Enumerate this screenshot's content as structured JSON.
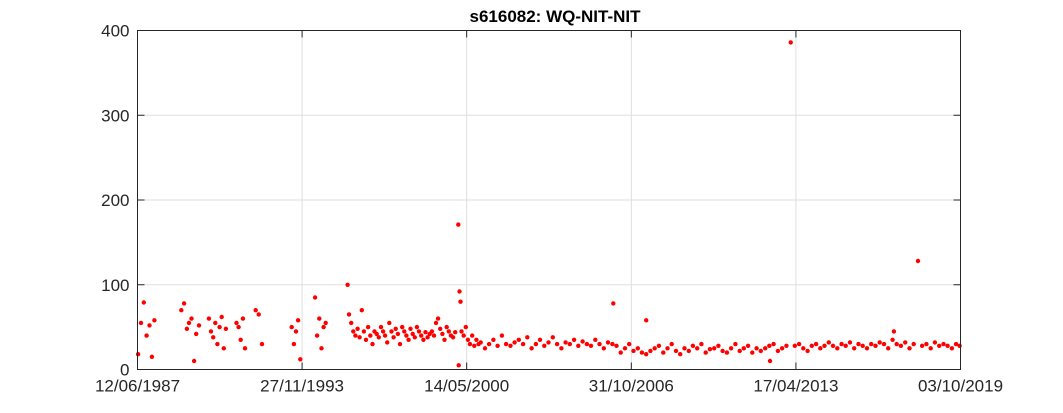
{
  "chart_data": {
    "type": "scatter",
    "title": "s616082: WQ-NIT-NIT",
    "xlabel": "",
    "ylabel": "",
    "x_ticks": [
      "12/06/1987",
      "27/11/1993",
      "14/05/2000",
      "31/10/2006",
      "17/04/2013",
      "03/10/2019"
    ],
    "xlim": [
      "1987-06-12",
      "2019-10-03"
    ],
    "ylim": [
      0,
      400
    ],
    "y_ticks": [
      0,
      100,
      200,
      300,
      400
    ],
    "grid": true,
    "marker_color": "#ff0000",
    "series": [
      {
        "x": [
          "1987-06-20",
          "1987-08-01",
          "1987-09-10",
          "1987-10-20",
          "1987-12-01",
          "1988-01-05",
          "1988-02-10",
          "1989-03-01",
          "1989-04-10",
          "1989-05-20",
          "1989-06-20",
          "1989-07-25",
          "1989-09-01",
          "1989-10-01",
          "1989-11-10",
          "1990-04-01",
          "1990-05-01",
          "1990-06-01",
          "1990-07-01",
          "1990-08-01",
          "1990-09-01",
          "1990-10-01",
          "1990-11-01",
          "1990-12-01",
          "1991-05-01",
          "1991-06-01",
          "1991-07-01",
          "1991-08-01",
          "1991-09-01",
          "1992-02-01",
          "1992-03-15",
          "1992-05-01",
          "1993-07-01",
          "1993-08-01",
          "1993-09-01",
          "1993-10-01",
          "1993-11-01",
          "1994-06-01",
          "1994-07-01",
          "1994-08-01",
          "1994-09-01",
          "1994-10-01",
          "1994-11-01",
          "1995-09-10",
          "1995-10-01",
          "1995-11-01",
          "1995-12-01",
          "1996-01-01",
          "1996-02-01",
          "1996-03-01",
          "1996-04-01",
          "1996-05-01",
          "1996-06-01",
          "1996-07-01",
          "1996-08-01",
          "1996-09-01",
          "1996-10-01",
          "1996-11-01",
          "1996-12-01",
          "1997-01-01",
          "1997-02-01",
          "1997-03-01",
          "1997-04-01",
          "1997-05-01",
          "1997-06-01",
          "1997-07-01",
          "1997-08-01",
          "1997-09-01",
          "1997-10-01",
          "1997-11-01",
          "1997-12-01",
          "1998-01-01",
          "1998-02-01",
          "1998-03-01",
          "1998-04-01",
          "1998-05-01",
          "1998-06-01",
          "1998-07-01",
          "1998-08-01",
          "1998-09-01",
          "1998-10-01",
          "1998-11-01",
          "1998-12-01",
          "1999-01-01",
          "1999-02-01",
          "1999-03-01",
          "1999-04-01",
          "1999-05-01",
          "1999-06-01",
          "1999-07-01",
          "1999-08-01",
          "1999-09-01",
          "1999-10-01",
          "1999-11-01",
          "1999-12-01",
          "2000-01-15",
          "2000-02-01",
          "2000-02-15",
          "2000-03-01",
          "2000-04-01",
          "2000-05-01",
          "2000-06-01",
          "2000-07-01",
          "2000-08-01",
          "2000-09-01",
          "2000-10-01",
          "2000-11-01",
          "2000-12-01",
          "2001-02-01",
          "2001-04-01",
          "2001-06-01",
          "2001-08-01",
          "2001-10-01",
          "2001-12-01",
          "2002-02-01",
          "2002-04-01",
          "2002-06-01",
          "2002-08-01",
          "2002-10-01",
          "2002-12-01",
          "2003-02-01",
          "2003-04-01",
          "2003-06-01",
          "2003-08-01",
          "2003-10-01",
          "2003-12-01",
          "2004-02-01",
          "2004-04-01",
          "2004-06-01",
          "2004-08-01",
          "2004-10-01",
          "2004-12-01",
          "2005-02-01",
          "2005-04-01",
          "2005-06-01",
          "2005-08-01",
          "2005-10-01",
          "2005-12-01",
          "2006-02-01",
          "2006-04-01",
          "2006-06-01",
          "2006-08-01",
          "2006-10-01",
          "2006-12-01",
          "2007-02-01",
          "2007-04-01",
          "2007-06-01",
          "2007-08-01",
          "2007-10-01",
          "2007-12-01",
          "2008-02-01",
          "2008-04-01",
          "2008-06-01",
          "2008-08-01",
          "2008-10-01",
          "2008-12-01",
          "2009-02-01",
          "2009-04-01",
          "2009-06-01",
          "2009-08-01",
          "2009-10-01",
          "2009-12-01",
          "2010-02-01",
          "2010-04-01",
          "2010-06-01",
          "2010-08-01",
          "2010-10-01",
          "2010-12-01",
          "2011-02-01",
          "2011-04-01",
          "2011-06-01",
          "2011-08-01",
          "2011-10-01",
          "2011-12-01",
          "2012-02-01",
          "2012-04-01",
          "2012-06-01",
          "2012-08-01",
          "2012-10-01",
          "2012-12-01",
          "2013-02-01",
          "2013-04-01",
          "2013-06-01",
          "2013-08-01",
          "2013-10-01",
          "2013-12-01",
          "2014-02-01",
          "2014-04-01",
          "2014-06-01",
          "2014-08-01",
          "2014-10-01",
          "2014-12-01",
          "2015-02-01",
          "2015-04-01",
          "2015-06-01",
          "2015-08-01",
          "2015-10-01",
          "2015-12-01",
          "2016-02-01",
          "2016-04-01",
          "2016-06-01",
          "2016-08-01",
          "2016-10-01",
          "2016-12-01",
          "2017-02-01",
          "2017-04-01",
          "2017-06-01",
          "2017-08-01",
          "2017-10-01",
          "2017-12-01",
          "2018-02-01",
          "2018-04-01",
          "2018-06-01",
          "2018-08-01",
          "2018-10-01",
          "2018-12-01",
          "2019-02-01",
          "2019-04-01",
          "2019-06-01",
          "2019-08-01",
          "2019-09-20",
          "2000-01-20",
          "2006-02-15",
          "2007-06-01",
          "2012-04-10",
          "2017-02-20"
        ],
        "y": [
          18,
          55,
          79,
          40,
          52,
          15,
          58,
          70,
          78,
          48,
          55,
          60,
          10,
          42,
          52,
          60,
          45,
          38,
          55,
          30,
          50,
          62,
          25,
          48,
          55,
          50,
          35,
          60,
          25,
          70,
          65,
          30,
          50,
          30,
          45,
          58,
          12,
          85,
          40,
          60,
          25,
          50,
          55,
          100,
          65,
          55,
          45,
          40,
          48,
          38,
          70,
          45,
          35,
          50,
          40,
          30,
          45,
          42,
          38,
          50,
          45,
          40,
          32,
          55,
          45,
          38,
          48,
          42,
          30,
          50,
          45,
          40,
          35,
          48,
          42,
          38,
          50,
          45,
          40,
          35,
          44,
          38,
          42,
          45,
          40,
          55,
          60,
          48,
          42,
          35,
          50,
          45,
          40,
          38,
          44,
          171,
          92,
          80,
          45,
          40,
          50,
          35,
          30,
          40,
          28,
          35,
          30,
          32,
          25,
          30,
          35,
          28,
          40,
          30,
          28,
          32,
          35,
          30,
          38,
          25,
          30,
          35,
          28,
          32,
          38,
          30,
          25,
          32,
          30,
          35,
          28,
          33,
          30,
          28,
          35,
          30,
          25,
          32,
          30,
          28,
          20,
          25,
          30,
          22,
          25,
          20,
          18,
          22,
          25,
          28,
          20,
          25,
          30,
          22,
          18,
          25,
          22,
          28,
          25,
          30,
          20,
          24,
          25,
          28,
          22,
          20,
          25,
          30,
          22,
          25,
          28,
          20,
          25,
          22,
          25,
          28,
          30,
          22,
          25,
          28,
          386,
          28,
          30,
          25,
          22,
          28,
          30,
          25,
          28,
          32,
          28,
          25,
          30,
          28,
          32,
          25,
          30,
          28,
          25,
          30,
          28,
          32,
          30,
          25,
          35,
          30,
          28,
          32,
          25,
          30,
          128,
          28,
          30,
          25,
          32,
          28,
          30,
          28,
          25,
          30,
          28,
          5,
          78,
          58,
          10,
          45
        ]
      }
    ]
  }
}
